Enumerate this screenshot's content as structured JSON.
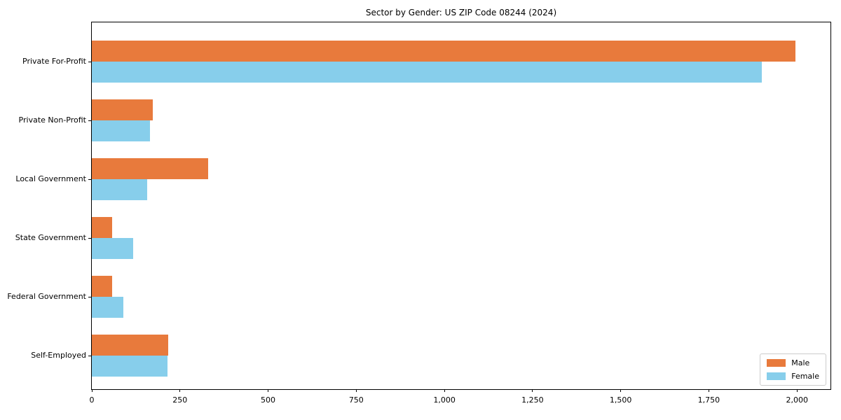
{
  "chart_data": {
    "type": "bar",
    "orientation": "horizontal",
    "title": "Sector by Gender: US ZIP Code 08244 (2024)",
    "categories": [
      "Private For-Profit",
      "Private Non-Profit",
      "Local Government",
      "State Government",
      "Federal Government",
      "Self-Employed"
    ],
    "series": [
      {
        "name": "Male",
        "color": "#e87a3c",
        "values": [
          1995,
          172,
          330,
          58,
          58,
          217
        ]
      },
      {
        "name": "Female",
        "color": "#87ceeb",
        "values": [
          1900,
          165,
          158,
          117,
          90,
          215
        ]
      }
    ],
    "xlabel": "",
    "ylabel": "",
    "xlim": [
      0,
      2095
    ],
    "x_ticks": [
      {
        "value": 0,
        "label": "0"
      },
      {
        "value": 250,
        "label": "250"
      },
      {
        "value": 500,
        "label": "500"
      },
      {
        "value": 750,
        "label": "750"
      },
      {
        "value": 1000,
        "label": "1,000"
      },
      {
        "value": 1250,
        "label": "1,250"
      },
      {
        "value": 1500,
        "label": "1,500"
      },
      {
        "value": 1750,
        "label": "1,750"
      },
      {
        "value": 2000,
        "label": "2,000"
      }
    ],
    "grid": false,
    "legend_position": "lower right",
    "frame": true
  }
}
